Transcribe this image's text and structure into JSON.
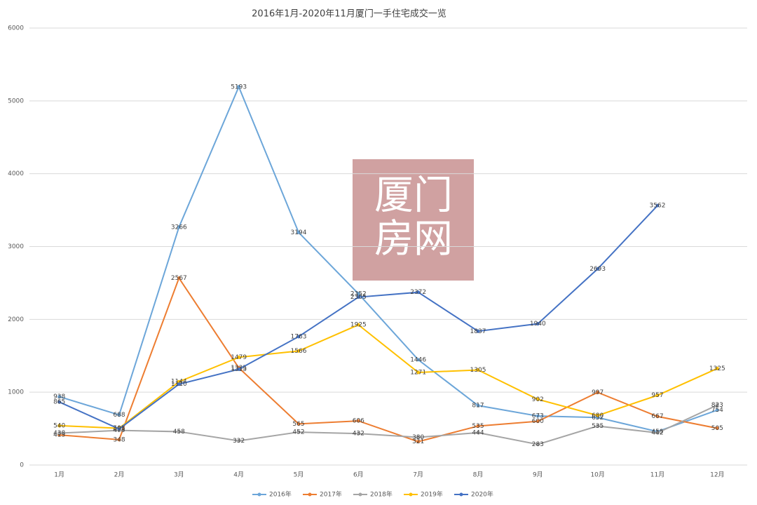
{
  "chart_data": {
    "type": "line",
    "title": "2016年1月-2020年11月厦门一手住宅成交一览",
    "categories": [
      "1月",
      "2月",
      "3月",
      "4月",
      "5月",
      "6月",
      "7月",
      "8月",
      "9月",
      "10月",
      "11月",
      "12月"
    ],
    "ylim": [
      0,
      6000
    ],
    "yticks": [
      0,
      1000,
      2000,
      3000,
      4000,
      5000,
      6000
    ],
    "grid": true,
    "legend": "bottom",
    "watermark": [
      "厦门",
      "房网"
    ],
    "series": [
      {
        "name": "2016年",
        "color": "#6ca6d9",
        "values": [
          938,
          688,
          3266,
          5193,
          3194,
          2352,
          1446,
          817,
          673,
          652,
          459,
          754
        ]
      },
      {
        "name": "2017年",
        "color": "#ed7d31",
        "values": [
          413,
          348,
          2567,
          1335,
          565,
          606,
          321,
          535,
          600,
          997,
          667,
          505
        ]
      },
      {
        "name": "2018年",
        "color": "#a5a5a5",
        "values": [
          438,
          475,
          458,
          332,
          452,
          432,
          380,
          444,
          283,
          535,
          442,
          823
        ]
      },
      {
        "name": "2019年",
        "color": "#ffc000",
        "values": [
          540,
          505,
          1144,
          1479,
          1566,
          1925,
          1271,
          1305,
          902,
          680,
          957,
          1325
        ]
      },
      {
        "name": "2020年",
        "color": "#4472c4",
        "values": [
          865,
          495,
          1110,
          1315,
          1763,
          2305,
          2372,
          1837,
          1940,
          2693,
          3562,
          null
        ]
      }
    ]
  }
}
